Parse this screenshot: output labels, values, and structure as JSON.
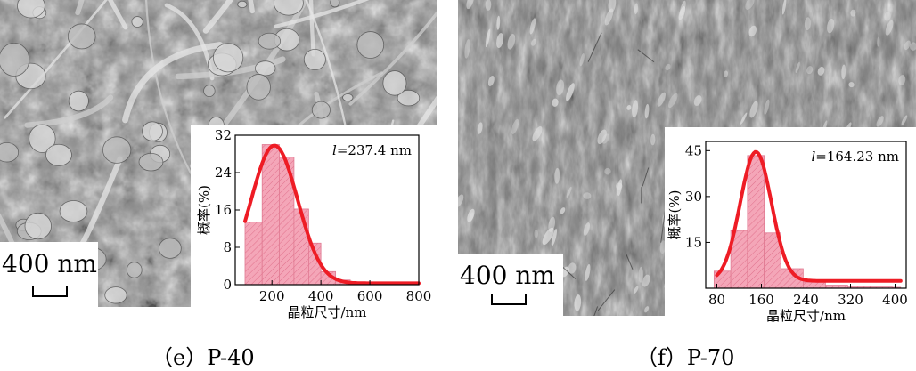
{
  "panels": [
    {
      "id": "e",
      "caption": "（e）P-40",
      "scale_bar": "400 nm",
      "micrograph": "SEM image of fibrous/granular particles",
      "chart_data": {
        "type": "bar",
        "xlabel": "晶粒尺寸/nm",
        "ylabel": "概率(%)",
        "annotation": "l=237.4 nm",
        "annotation_italic_prefix": "l",
        "annotation_rest": "=237.4 nm",
        "xlim": [
          50,
          800
        ],
        "ylim": [
          0,
          32
        ],
        "xticks": [
          200,
          400,
          600,
          800
        ],
        "yticks": [
          0,
          8,
          16,
          24,
          32
        ],
        "bin_edges": [
          90,
          160,
          230,
          290,
          350,
          400,
          460,
          520,
          580,
          640,
          700,
          760,
          800
        ],
        "values": [
          13.4,
          30.0,
          27.3,
          16.2,
          8.9,
          2.8,
          1.0,
          0.4,
          0.2,
          0.1,
          0.1,
          0.1
        ],
        "fit": {
          "type": "gaussian",
          "mu": 210,
          "sigma": 95,
          "amp": 29.5,
          "baseline": 0.3,
          "x_start": 90,
          "x_end": 800
        },
        "bar_color": "#f4a6b8",
        "fit_color": "#ee1c25"
      }
    },
    {
      "id": "f",
      "caption": "（f）P-70",
      "scale_bar": "400 nm",
      "micrograph": "AFM image of fine-grained surface",
      "chart_data": {
        "type": "bar",
        "xlabel": "晶粒尺寸/nm",
        "ylabel": "概率(%)",
        "annotation": "l=164.23 nm",
        "annotation_italic_prefix": "l",
        "annotation_rest": "=164.23 nm",
        "xlim": [
          60,
          420
        ],
        "ylim": [
          0,
          48
        ],
        "xticks": [
          80,
          160,
          240,
          320,
          400
        ],
        "yticks": [
          15,
          30,
          45
        ],
        "bin_edges": [
          75,
          105,
          135,
          165,
          195,
          235,
          275,
          315,
          355,
          395,
          410
        ],
        "values": [
          5.6,
          18.9,
          43.4,
          18.1,
          6.4,
          2.0,
          1.0,
          0.6,
          0.4,
          0.3
        ],
        "fit": {
          "type": "gaussian",
          "mu": 150,
          "sigma": 28,
          "amp": 42.2,
          "baseline": 2.4,
          "x_start": 80,
          "x_end": 410
        },
        "bar_color": "#f4a6b8",
        "fit_color": "#ee1c25"
      }
    }
  ]
}
